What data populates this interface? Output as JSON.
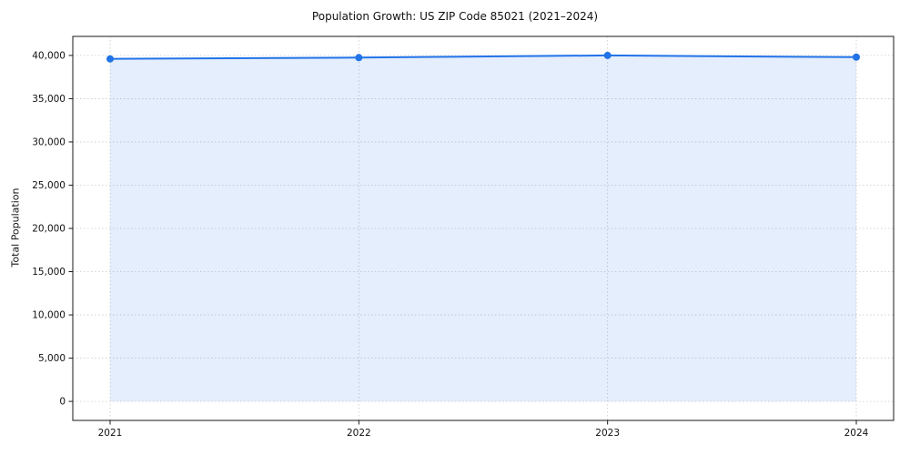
{
  "chart_data": {
    "type": "line",
    "title": "Population Growth: US ZIP Code 85021 (2021–2024)",
    "xlabel": "",
    "ylabel": "Total Population",
    "x": [
      2021,
      2022,
      2023,
      2024
    ],
    "x_tick_labels": [
      "2021",
      "2022",
      "2023",
      "2024"
    ],
    "values": [
      39600,
      39750,
      40000,
      39800
    ],
    "series_name": "Total Population",
    "y_ticks": [
      0,
      5000,
      10000,
      15000,
      20000,
      25000,
      30000,
      35000,
      40000
    ],
    "xlim": [
      2020.85,
      2024.15
    ],
    "ylim": [
      -2200,
      42200
    ],
    "grid": true,
    "grid_style": "dotted",
    "legend": "none",
    "area_fill": true,
    "colors": {
      "line": "#2273e8",
      "marker": "#2273e8",
      "fill": "#2273e8",
      "fill_opacity": 0.12,
      "grid": "#c9c9c9",
      "spine": "#1a1a1a",
      "tick_text": "#111111",
      "background": "#ffffff"
    }
  }
}
